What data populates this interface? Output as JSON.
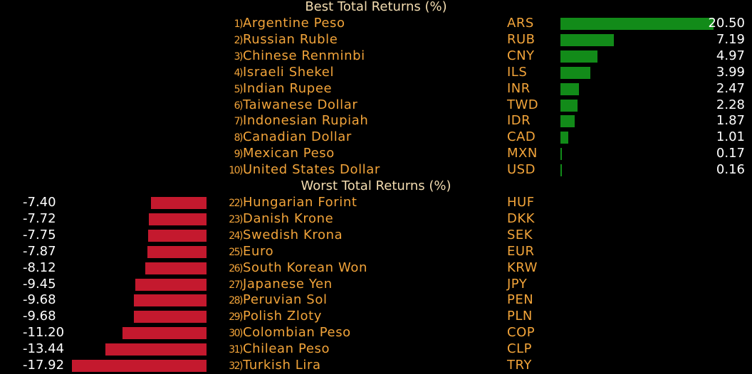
{
  "chart_data": [
    {
      "type": "bar",
      "orientation": "horizontal",
      "title": "Best Total Returns (%)",
      "ranks": [
        "1)",
        "2)",
        "3)",
        "4)",
        "5)",
        "6)",
        "7)",
        "8)",
        "9)",
        "10)"
      ],
      "categories": [
        "Argentine Peso",
        "Russian Ruble",
        "Chinese Renminbi",
        "Israeli Shekel",
        "Indian Rupee",
        "Taiwanese Dollar",
        "Indonesian Rupiah",
        "Canadian Dollar",
        "Mexican Peso",
        "United States Dollar"
      ],
      "codes": [
        "ARS",
        "RUB",
        "CNY",
        "ILS",
        "INR",
        "TWD",
        "IDR",
        "CAD",
        "MXN",
        "USD"
      ],
      "values": [
        20.5,
        7.19,
        4.97,
        3.99,
        2.47,
        2.28,
        1.87,
        1.01,
        0.17,
        0.16
      ],
      "labels": [
        "20.50",
        "7.19",
        "4.97",
        "3.99",
        "2.47",
        "2.28",
        "1.87",
        "1.01",
        "0.17",
        "0.16"
      ],
      "bar_color": "#128b19",
      "xlim": [
        0,
        20.5
      ]
    },
    {
      "type": "bar",
      "orientation": "horizontal",
      "title": "Worst Total Returns (%)",
      "ranks": [
        "22)",
        "23)",
        "24)",
        "25)",
        "26)",
        "27)",
        "28)",
        "29)",
        "30)",
        "31)",
        "32)"
      ],
      "categories": [
        "Hungarian Forint",
        "Danish Krone",
        "Swedish Krona",
        "Euro",
        "South Korean Won",
        "Japanese Yen",
        "Peruvian Sol",
        "Polish Zloty",
        "Colombian Peso",
        "Chilean Peso",
        "Turkish Lira"
      ],
      "codes": [
        "HUF",
        "DKK",
        "SEK",
        "EUR",
        "KRW",
        "JPY",
        "PEN",
        "PLN",
        "COP",
        "CLP",
        "TRY"
      ],
      "values": [
        -7.4,
        -7.72,
        -7.75,
        -7.87,
        -8.12,
        -9.45,
        -9.68,
        -9.68,
        -11.2,
        -13.44,
        -17.92
      ],
      "labels": [
        "-7.40",
        "-7.72",
        "-7.75",
        "-7.87",
        "-8.12",
        "-9.45",
        "-9.68",
        "-9.68",
        "-11.20",
        "-13.44",
        "-17.92"
      ],
      "bar_color": "#c4192e",
      "xlim": [
        -17.92,
        0
      ]
    }
  ],
  "colors": {
    "background": "#000000",
    "title": "#f3dcb0",
    "label": "#f2a43a",
    "value": "#ffffff"
  }
}
